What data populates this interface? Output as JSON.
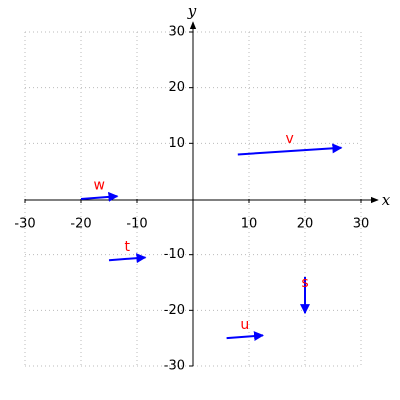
{
  "chart_data": {
    "type": "quiver",
    "xlabel": "x",
    "ylabel": "y",
    "xlim": [
      -30,
      30
    ],
    "ylim": [
      -30,
      30
    ],
    "xticks": [
      -30,
      -20,
      -10,
      10,
      20,
      30
    ],
    "yticks": [
      -30,
      -20,
      -10,
      10,
      20,
      30
    ],
    "grid": true,
    "color": "blue",
    "label_color": "red",
    "vectors": [
      {
        "name": "v",
        "x0": 8,
        "y0": 8,
        "x1": 26.5,
        "y1": 9.2
      },
      {
        "name": "w",
        "x0": -20,
        "y0": 0,
        "x1": -13.5,
        "y1": 0.5
      },
      {
        "name": "t",
        "x0": -15,
        "y0": -11,
        "x1": -8.5,
        "y1": -10.5
      },
      {
        "name": "s",
        "x0": 20,
        "y0": -14,
        "x1": 20,
        "y1": -20.5
      },
      {
        "name": "u",
        "x0": 6,
        "y0": -25,
        "x1": 12.5,
        "y1": -24.5
      }
    ]
  }
}
